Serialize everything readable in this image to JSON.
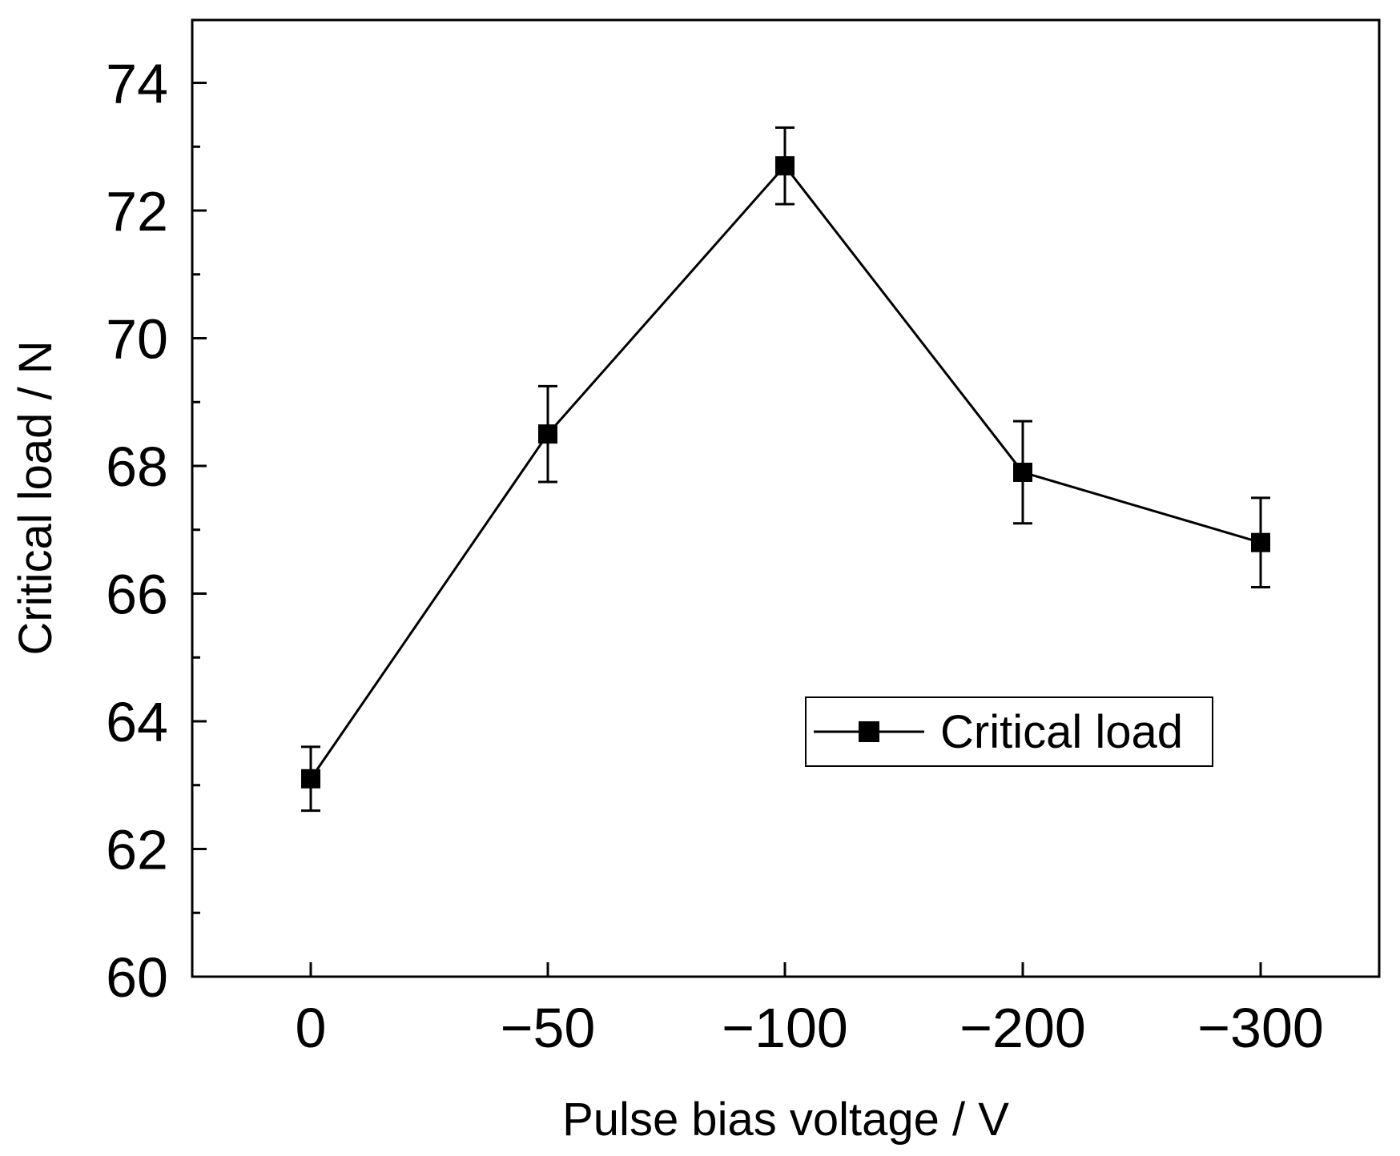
{
  "chart_data": {
    "type": "line",
    "title": "",
    "xlabel": "Pulse bias voltage / V",
    "ylabel": "Critical load / N",
    "categories": [
      "0",
      "−50",
      "−100",
      "−200",
      "−300"
    ],
    "ylim": [
      60,
      75
    ],
    "yticks": [
      60,
      62,
      64,
      66,
      68,
      70,
      72,
      74
    ],
    "y_minor_step": 1,
    "grid": false,
    "legend": {
      "position": "center-right",
      "entries": [
        "Critical load"
      ]
    },
    "series": [
      {
        "name": "Critical load",
        "marker": "square",
        "color": "#000000",
        "values": [
          63.1,
          68.5,
          72.7,
          67.9,
          66.8
        ],
        "error_upper": [
          63.6,
          69.25,
          73.3,
          68.7,
          67.5
        ],
        "error_lower": [
          62.6,
          67.75,
          72.1,
          67.1,
          66.1
        ]
      }
    ]
  }
}
